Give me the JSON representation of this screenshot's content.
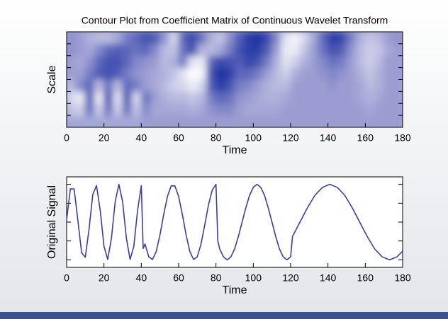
{
  "chart_data": [
    {
      "type": "contour",
      "title": "Contour Plot from Coefficient Matrix of Continuous Wavelet Transform",
      "xlabel": "Time",
      "ylabel": "Scale",
      "xlim": [
        0,
        180
      ],
      "xticks": [
        0,
        20,
        40,
        60,
        80,
        100,
        120,
        140,
        160,
        180
      ],
      "ylim": [
        0,
        8
      ],
      "yticks": [
        1,
        2,
        3,
        4,
        5,
        6,
        7
      ],
      "xbins": [
        0,
        5,
        10,
        15,
        20,
        25,
        30,
        35,
        40,
        45,
        50,
        55,
        60,
        65,
        70,
        75,
        80,
        85,
        90,
        95,
        100,
        105,
        110,
        115,
        120,
        125,
        130,
        135,
        140,
        145,
        150,
        155,
        160,
        165,
        170,
        175,
        180
      ],
      "ybins": [
        0,
        1,
        2,
        3,
        4,
        5,
        6,
        7,
        8
      ],
      "zlim": [
        -1,
        1
      ],
      "colors": {
        "low": "#ffffff",
        "mid": "#9b9dd2",
        "high": "#1f32a3"
      },
      "z": [
        [
          -0.1,
          -0.1,
          -0.1,
          -0.1,
          -0.1,
          -0.1,
          -0.1,
          -0.1,
          0,
          0,
          0,
          0,
          0,
          0,
          0,
          0,
          0,
          0,
          0,
          0,
          0,
          0,
          0,
          0,
          0,
          0,
          0,
          0,
          0,
          0,
          0,
          0,
          0,
          0,
          0,
          0
        ],
        [
          -0.4,
          -0.5,
          0.4,
          -0.5,
          0.4,
          -0.5,
          0.4,
          -0.4,
          0.2,
          -0.1,
          -0.1,
          -0.1,
          -0.1,
          -0.2,
          -0.1,
          0.1,
          0.2,
          0.2,
          0,
          -0.1,
          -0.1,
          -0.1,
          -0.1,
          0,
          0,
          0,
          0,
          0,
          0,
          0,
          0,
          0,
          -0.1,
          0,
          0,
          0
        ],
        [
          -0.6,
          -0.8,
          0.6,
          -0.8,
          0.7,
          -0.7,
          0.7,
          -0.6,
          0.4,
          0,
          -0.2,
          -0.3,
          -0.3,
          -0.4,
          -0.3,
          0.3,
          0.5,
          0.4,
          0.1,
          0,
          -0.1,
          -0.2,
          -0.2,
          -0.1,
          0,
          0,
          0,
          0,
          0,
          0,
          0,
          -0.1,
          -0.2,
          -0.1,
          0,
          0
        ],
        [
          -0.3,
          0.2,
          0.5,
          -0.3,
          0.4,
          -0.3,
          0.5,
          0.3,
          0,
          -0.1,
          -0.3,
          -0.5,
          -0.6,
          -0.8,
          -0.6,
          0.6,
          0.9,
          0.7,
          0.3,
          0.2,
          0,
          -0.2,
          -0.3,
          -0.3,
          0,
          0,
          0,
          0,
          0.1,
          0,
          0,
          -0.1,
          -0.3,
          -0.2,
          0,
          0
        ],
        [
          0,
          0,
          0.3,
          0.6,
          0.7,
          0.6,
          0.3,
          0.1,
          0,
          -0.1,
          -0.2,
          -0.4,
          -0.7,
          -1,
          -0.9,
          0.7,
          1,
          0.9,
          0.5,
          0.5,
          0.3,
          0,
          -0.3,
          -0.5,
          -0.2,
          0,
          0,
          0.1,
          0.2,
          0.1,
          0,
          -0.2,
          -0.4,
          -0.2,
          0,
          0
        ],
        [
          0,
          -0.1,
          0.1,
          0.5,
          0.7,
          0.7,
          0.5,
          0.2,
          0.1,
          0,
          -0.3,
          -0.2,
          0.3,
          -0.7,
          -0.8,
          0.5,
          0.8,
          0.7,
          0.6,
          0.8,
          0.7,
          0.3,
          -0.2,
          -0.7,
          -0.5,
          -0.2,
          0,
          0.2,
          0.4,
          0.3,
          0,
          -0.3,
          -0.5,
          -0.3,
          0,
          0
        ],
        [
          0.1,
          0,
          -0.1,
          0.2,
          0.5,
          0.6,
          0.5,
          0.4,
          0.5,
          0.2,
          -0.3,
          -0.4,
          0.4,
          0.7,
          -0.2,
          -0.3,
          -0.1,
          0.3,
          0.7,
          0.9,
          0.9,
          0.6,
          0,
          -0.8,
          -0.8,
          -0.4,
          0,
          0.4,
          0.7,
          0.6,
          0.1,
          -0.3,
          -0.5,
          -0.4,
          -0.1,
          0
        ],
        [
          0.1,
          0,
          -0.2,
          -0.3,
          -0.3,
          -0.1,
          0.3,
          0.5,
          0.7,
          0.6,
          0.1,
          -0.6,
          0.5,
          0.8,
          0.4,
          -0.2,
          -0.4,
          0.1,
          0.6,
          0.9,
          1,
          0.8,
          0.2,
          -0.7,
          -0.9,
          -0.6,
          -0.1,
          0.5,
          0.9,
          0.8,
          0.3,
          -0.2,
          -0.4,
          -0.3,
          0,
          0.1
        ]
      ]
    },
    {
      "type": "line",
      "xlabel": "Time",
      "ylabel": "Original Signal",
      "xlim": [
        0,
        180
      ],
      "xticks": [
        0,
        20,
        40,
        60,
        80,
        100,
        120,
        140,
        160,
        180
      ],
      "ylim": [
        -1.2,
        1.2
      ],
      "yticks": [
        -1,
        -0.5,
        0,
        0.5,
        1
      ],
      "color": "#3a3fa0",
      "x": [
        0,
        2,
        4,
        6,
        8,
        10,
        12,
        14,
        16,
        18,
        20,
        22,
        24,
        26,
        28,
        30,
        32,
        34,
        36,
        38,
        40,
        41,
        42,
        44,
        46,
        48,
        50,
        52,
        54,
        56,
        58,
        60,
        62,
        64,
        66,
        68,
        70,
        72,
        74,
        76,
        78,
        80,
        81,
        82,
        84,
        86,
        88,
        90,
        92,
        94,
        96,
        98,
        100,
        102,
        104,
        106,
        108,
        110,
        112,
        114,
        116,
        118,
        120,
        121,
        125,
        129,
        133,
        137,
        141,
        145,
        149,
        153,
        157,
        161,
        165,
        169,
        173,
        177,
        180
      ],
      "values": [
        0.06,
        0.88,
        0.88,
        0.06,
        -0.81,
        -0.93,
        -0.19,
        0.73,
        0.97,
        0.31,
        -0.64,
        -0.99,
        -0.43,
        0.54,
        1,
        0.54,
        -0.43,
        -0.99,
        -0.64,
        0.31,
        0.97,
        -0.7,
        -0.58,
        -0.92,
        -0.99,
        -0.78,
        -0.34,
        0.2,
        0.68,
        0.96,
        0.96,
        0.68,
        0.2,
        -0.34,
        -0.78,
        -0.99,
        -0.92,
        -0.58,
        -0.07,
        0.46,
        0.85,
        1,
        -0.5,
        -0.71,
        -0.92,
        -1,
        -0.92,
        -0.71,
        -0.38,
        0,
        0.38,
        0.71,
        0.92,
        1,
        0.92,
        0.71,
        0.38,
        0,
        -0.38,
        -0.71,
        -0.92,
        -1,
        -0.92,
        -0.38,
        0,
        0.38,
        0.71,
        0.92,
        1,
        0.92,
        0.71,
        0.38,
        0,
        -0.38,
        -0.71,
        -0.92,
        -1,
        -0.92,
        -0.77
      ]
    }
  ]
}
